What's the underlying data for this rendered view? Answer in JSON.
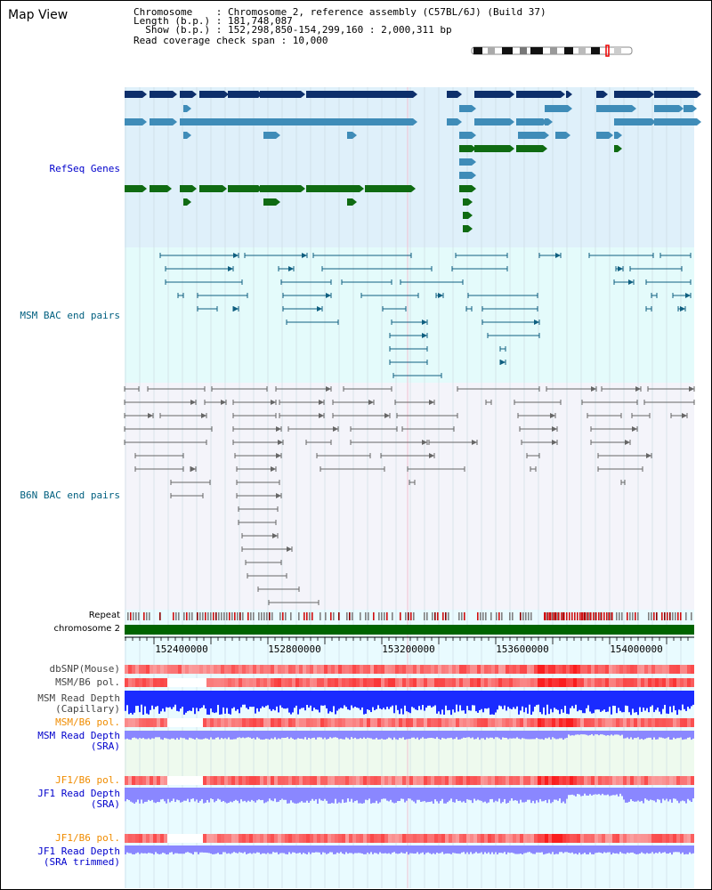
{
  "title": "Map View",
  "header": {
    "chromosome_line": "Chromosome    : Chromosome 2, reference assembly (C57BL/6J) (Build 37)",
    "length_line": "Length (b.p.) : 181,748,087",
    "show_line": "  Show (b.p.) : 152,298,850-154,299,160 : 2,000,311 bp",
    "coverage_line": "Read coverage check span : 10,000"
  },
  "tracks": {
    "refseq": "RefSeq Genes",
    "msm_bac": "MSM BAC end pairs",
    "b6n_bac": "B6N BAC end pairs",
    "repeat": "Repeat",
    "chromosome": "chromosome 2",
    "dbsnp": "dbSNP(Mouse)",
    "msm_b6_pol": "MSM/B6 pol.",
    "msm_depth_cap_1": "MSM Read Depth",
    "msm_depth_cap_2": "(Capillary)",
    "msm_b6_pol_2": "MSM/B6 pol.",
    "msm_depth_sra_1": "MSM Read Depth",
    "msm_depth_sra_2": "(SRA)",
    "jf1_b6_pol": "JF1/B6 pol.",
    "jf1_depth_sra_1": "JF1 Read Depth",
    "jf1_depth_sra_2": "(SRA)",
    "jf1_b6_pol_2": "JF1/B6 pol.",
    "jf1_depth_trim_1": "JF1 Read Depth",
    "jf1_depth_trim_2": "(SRA trimmed)"
  },
  "axis_ticks": [
    "152400000",
    "152800000",
    "153200000",
    "153600000",
    "154000000"
  ],
  "colors": {
    "refseq_bg": "#dff0fa",
    "msm_bg": "#e4fbfb",
    "b6n_bg": "#f4f4fa",
    "gene_dark": "#0d2f6b",
    "gene_mid": "#3f8cb8",
    "gene_green": "#0f6b12",
    "msm_bac": "#0f5f80",
    "b6n_bac": "#666666",
    "chrom_bar": "#006400",
    "depth_blue": "#1a2bff",
    "depth_lavender": "#8a87ff"
  }
}
